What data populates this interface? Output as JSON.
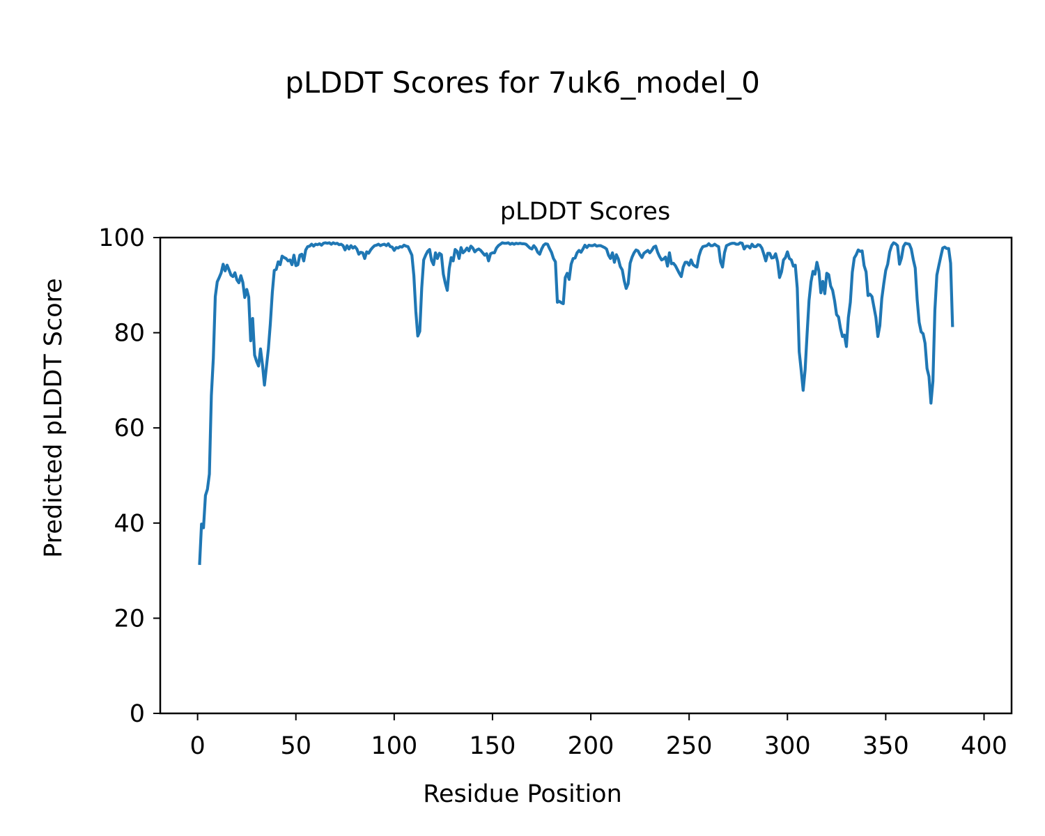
{
  "figure": {
    "suptitle": "pLDDT Scores for 7uk6_model_0"
  },
  "chart_data": {
    "type": "line",
    "title": "pLDDT Scores",
    "xlabel": "Residue Position",
    "ylabel": "Predicted pLDDT Score",
    "xlim": [
      -19,
      414
    ],
    "ylim": [
      0,
      100
    ],
    "xticks": [
      0,
      50,
      100,
      150,
      200,
      250,
      300,
      350,
      400
    ],
    "yticks": [
      0,
      20,
      40,
      60,
      80,
      100
    ],
    "grid": false,
    "legend": "none",
    "series": [
      {
        "color": "#1f77b4",
        "x_start": 1,
        "x_step": 1,
        "values": [
          31.2,
          39.8,
          39.0,
          45.8,
          47.1,
          50.3,
          66.8,
          74.6,
          87.6,
          90.7,
          91.6,
          92.6,
          94.4,
          93.0,
          94.2,
          93.2,
          92.1,
          91.8,
          92.6,
          91.1,
          90.5,
          92.0,
          90.6,
          87.4,
          89.1,
          87.5,
          78.3,
          83.0,
          75.3,
          74.0,
          73.0,
          76.6,
          73.3,
          69.0,
          72.8,
          76.6,
          81.9,
          88.4,
          93.1,
          93.3,
          94.9,
          94.3,
          96.1,
          95.8,
          95.6,
          95.1,
          95.3,
          94.3,
          96.3,
          94.1,
          94.3,
          96.3,
          96.5,
          95.1,
          97.4,
          98.1,
          98.2,
          98.6,
          98.2,
          98.6,
          98.5,
          98.7,
          98.4,
          98.8,
          98.9,
          98.8,
          98.9,
          98.6,
          98.9,
          98.7,
          98.8,
          98.5,
          98.6,
          98.3,
          97.4,
          98.3,
          97.6,
          98.3,
          97.8,
          98.1,
          97.6,
          96.5,
          96.9,
          96.8,
          95.6,
          97.0,
          96.7,
          97.4,
          97.9,
          98.3,
          98.4,
          98.6,
          98.3,
          98.5,
          98.6,
          98.3,
          98.7,
          98.1,
          98.0,
          97.3,
          97.9,
          97.8,
          98.1,
          98.0,
          98.4,
          98.2,
          98.1,
          97.2,
          96.3,
          92.0,
          84.5,
          79.3,
          80.3,
          89.4,
          95.3,
          96.3,
          97.1,
          97.5,
          95.2,
          94.3,
          96.8,
          95.6,
          96.7,
          96.4,
          92.3,
          90.4,
          88.9,
          93.5,
          95.8,
          95.1,
          97.5,
          97.1,
          95.6,
          97.9,
          96.8,
          97.2,
          97.8,
          97.2,
          98.2,
          97.8,
          97.0,
          97.4,
          97.6,
          97.3,
          96.8,
          96.3,
          96.6,
          95.1,
          96.6,
          96.8,
          96.8,
          97.8,
          98.3,
          98.6,
          98.9,
          98.8,
          98.8,
          98.9,
          98.6,
          98.8,
          98.6,
          98.8,
          98.7,
          98.8,
          98.7,
          98.7,
          98.6,
          98.2,
          97.8,
          97.6,
          98.3,
          97.8,
          96.9,
          96.5,
          97.6,
          98.4,
          98.7,
          98.6,
          97.7,
          96.9,
          95.6,
          94.9,
          86.4,
          86.6,
          86.3,
          86.1,
          91.6,
          92.5,
          91.2,
          94.4,
          95.6,
          95.7,
          96.8,
          97.3,
          96.9,
          97.6,
          98.4,
          97.9,
          98.4,
          98.3,
          98.3,
          98.5,
          98.2,
          98.3,
          98.3,
          98.1,
          97.9,
          97.6,
          96.3,
          95.6,
          96.8,
          94.8,
          96.4,
          95.5,
          93.9,
          93.2,
          90.9,
          89.3,
          90.3,
          94.6,
          95.9,
          96.8,
          97.4,
          97.2,
          96.4,
          95.8,
          96.7,
          97.0,
          97.3,
          96.8,
          97.3,
          98.0,
          98.2,
          96.9,
          96.0,
          95.3,
          95.5,
          95.9,
          94.0,
          96.8,
          94.5,
          94.6,
          94.1,
          93.3,
          92.5,
          91.8,
          93.8,
          94.8,
          94.8,
          94.2,
          95.3,
          94.3,
          94.0,
          93.8,
          96.1,
          97.4,
          98.1,
          98.2,
          98.3,
          98.7,
          98.3,
          98.3,
          98.6,
          98.3,
          98.1,
          94.9,
          93.8,
          96.8,
          98.3,
          98.5,
          98.7,
          98.8,
          98.8,
          98.6,
          98.6,
          98.9,
          98.8,
          97.6,
          98.2,
          98.2,
          97.8,
          98.6,
          98.1,
          98.1,
          98.5,
          98.4,
          97.8,
          96.5,
          95.1,
          96.7,
          96.7,
          95.7,
          95.8,
          96.6,
          94.9,
          91.6,
          92.8,
          95.3,
          95.8,
          97.0,
          95.6,
          95.3,
          94.0,
          94.2,
          89.4,
          76.0,
          72.1,
          67.9,
          72.2,
          79.7,
          86.8,
          90.7,
          92.9,
          92.3,
          94.8,
          93.0,
          88.4,
          90.8,
          88.2,
          92.5,
          92.2,
          89.8,
          88.9,
          86.7,
          83.8,
          83.3,
          80.9,
          79.2,
          79.5,
          77.1,
          83.2,
          86.4,
          92.7,
          95.7,
          96.4,
          97.4,
          97.1,
          97.2,
          94.1,
          92.8,
          87.8,
          88.1,
          87.6,
          85.4,
          83.2,
          79.2,
          81.5,
          87.2,
          90.3,
          93.1,
          94.4,
          97.0,
          98.3,
          98.9,
          98.7,
          98.3,
          94.4,
          95.7,
          98.1,
          98.8,
          98.7,
          98.6,
          97.6,
          95.4,
          93.6,
          86.9,
          82.2,
          80.2,
          79.8,
          77.8,
          72.5,
          70.8,
          65.2,
          69.8,
          84.8,
          92.1,
          94.1,
          96.0,
          97.8,
          98.0,
          97.7,
          97.7,
          94.6,
          81.2
        ]
      }
    ]
  }
}
